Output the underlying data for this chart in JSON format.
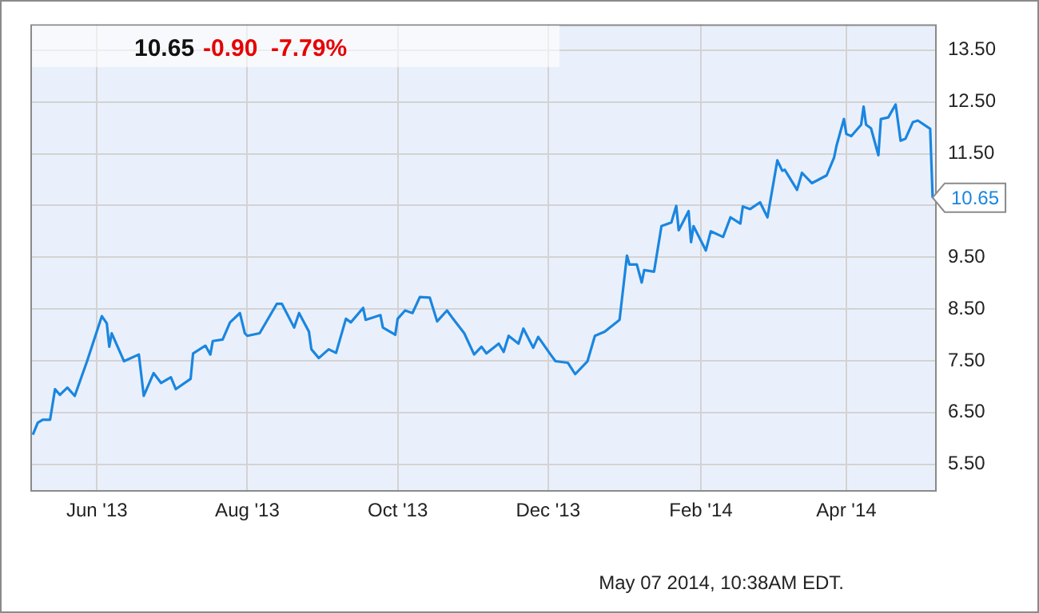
{
  "chart_data": {
    "type": "line",
    "title": "10.65",
    "subtitle": "-0.90  -7.79%",
    "x": [
      "2013-05-06",
      "2013-05-08",
      "2013-05-10",
      "2013-05-13",
      "2013-05-15",
      "2013-05-17",
      "2013-05-20",
      "2013-05-23",
      "2013-05-28",
      "2013-06-03",
      "2013-06-05",
      "2013-06-06",
      "2013-06-07",
      "2013-06-12",
      "2013-06-18",
      "2013-06-20",
      "2013-06-24",
      "2013-06-27",
      "2013-07-01",
      "2013-07-03",
      "2013-07-09",
      "2013-07-10",
      "2013-07-15",
      "2013-07-17",
      "2013-07-18",
      "2013-07-22",
      "2013-07-25",
      "2013-07-29",
      "2013-07-31",
      "2013-08-01",
      "2013-08-06",
      "2013-08-13",
      "2013-08-15",
      "2013-08-20",
      "2013-08-22",
      "2013-08-26",
      "2013-08-27",
      "2013-08-30",
      "2013-09-03",
      "2013-09-06",
      "2013-09-10",
      "2013-09-12",
      "2013-09-17",
      "2013-09-18",
      "2013-09-24",
      "2013-09-25",
      "2013-09-30",
      "2013-10-01",
      "2013-10-04",
      "2013-10-07",
      "2013-10-10",
      "2013-10-14",
      "2013-10-17",
      "2013-10-21",
      "2013-10-23",
      "2013-10-28",
      "2013-11-01",
      "2013-11-04",
      "2013-11-06",
      "2013-11-11",
      "2013-11-13",
      "2013-11-15",
      "2013-11-19",
      "2013-11-21",
      "2013-11-25",
      "2013-11-27",
      "2013-12-02",
      "2013-12-04",
      "2013-12-09",
      "2013-12-12",
      "2013-12-17",
      "2013-12-20",
      "2013-12-24",
      "2013-12-30",
      "2014-01-02",
      "2014-01-03",
      "2014-01-06",
      "2014-01-08",
      "2014-01-09",
      "2014-01-13",
      "2014-01-16",
      "2014-01-20",
      "2014-01-22",
      "2014-01-23",
      "2014-01-27",
      "2014-01-28",
      "2014-01-29",
      "2014-02-03",
      "2014-02-05",
      "2014-02-10",
      "2014-02-13",
      "2014-02-17",
      "2014-02-18",
      "2014-02-21",
      "2014-02-25",
      "2014-02-28",
      "2014-03-04",
      "2014-03-06",
      "2014-03-07",
      "2014-03-12",
      "2014-03-14",
      "2014-03-18",
      "2014-03-24",
      "2014-03-27",
      "2014-03-28",
      "2014-03-31",
      "2014-04-01",
      "2014-04-03",
      "2014-04-07",
      "2014-04-08",
      "2014-04-09",
      "2014-04-11",
      "2014-04-14",
      "2014-04-15",
      "2014-04-18",
      "2014-04-21",
      "2014-04-23",
      "2014-04-25",
      "2014-04-28",
      "2014-04-30",
      "2014-05-05",
      "2014-05-06"
    ],
    "series": [
      {
        "color": "#1a86e0",
        "values": [
          6.07,
          6.3,
          6.36,
          6.36,
          6.95,
          6.84,
          6.98,
          6.82,
          7.49,
          8.36,
          8.22,
          7.77,
          8.03,
          7.49,
          7.62,
          6.82,
          7.26,
          7.07,
          7.18,
          6.95,
          7.15,
          7.64,
          7.79,
          7.62,
          7.88,
          7.91,
          8.24,
          8.42,
          8.03,
          7.98,
          8.03,
          8.6,
          8.6,
          8.14,
          8.42,
          8.06,
          7.72,
          7.55,
          7.72,
          7.65,
          8.31,
          8.24,
          8.52,
          8.29,
          8.38,
          8.14,
          8.0,
          8.31,
          8.47,
          8.42,
          8.73,
          8.72,
          8.26,
          8.47,
          8.34,
          8.03,
          7.62,
          7.77,
          7.64,
          7.83,
          7.67,
          7.98,
          7.83,
          8.12,
          7.75,
          7.96,
          7.62,
          7.49,
          7.46,
          7.24,
          7.49,
          7.98,
          8.06,
          8.29,
          9.53,
          9.36,
          9.36,
          9.01,
          9.25,
          9.22,
          10.1,
          10.17,
          10.49,
          10.02,
          10.39,
          9.79,
          10.1,
          9.63,
          10.0,
          9.89,
          10.27,
          10.15,
          10.48,
          10.43,
          10.56,
          10.27,
          11.37,
          11.17,
          11.19,
          10.8,
          11.13,
          10.93,
          11.08,
          11.42,
          11.65,
          12.17,
          11.88,
          11.84,
          12.06,
          12.41,
          12.06,
          11.99,
          11.47,
          12.17,
          12.2,
          12.45,
          11.75,
          11.79,
          12.11,
          12.14,
          11.98,
          10.65
        ]
      }
    ],
    "xlim": [
      "2013-05-05",
      "2014-05-07"
    ],
    "xticks": [
      {
        "value": "2013-06-01",
        "label": "Jun '13"
      },
      {
        "value": "2013-08-01",
        "label": "Aug '13"
      },
      {
        "value": "2013-10-01",
        "label": "Oct '13"
      },
      {
        "value": "2013-12-01",
        "label": "Dec '13"
      },
      {
        "value": "2014-02-01",
        "label": "Feb '14"
      },
      {
        "value": "2014-04-01",
        "label": "Apr '14"
      }
    ],
    "ylim": [
      5,
      14
    ],
    "yticks": [
      {
        "value": 5.5,
        "label": "5.50"
      },
      {
        "value": 6.5,
        "label": "6.50"
      },
      {
        "value": 7.5,
        "label": "7.50"
      },
      {
        "value": 8.5,
        "label": "8.50"
      },
      {
        "value": 9.5,
        "label": "9.50"
      },
      {
        "value": 10.5,
        "label": null
      },
      {
        "value": 11.5,
        "label": "11.50"
      },
      {
        "value": 12.5,
        "label": "12.50"
      },
      {
        "value": 13.5,
        "label": "13.50"
      }
    ],
    "grid": true,
    "legend": false,
    "marker": "none",
    "line_style": "solid",
    "annotations": [
      {
        "text": "10.65",
        "x": "2014-05-06",
        "y": 10.65
      },
      "May 07 2014, 10:38AM EDT."
    ]
  }
}
